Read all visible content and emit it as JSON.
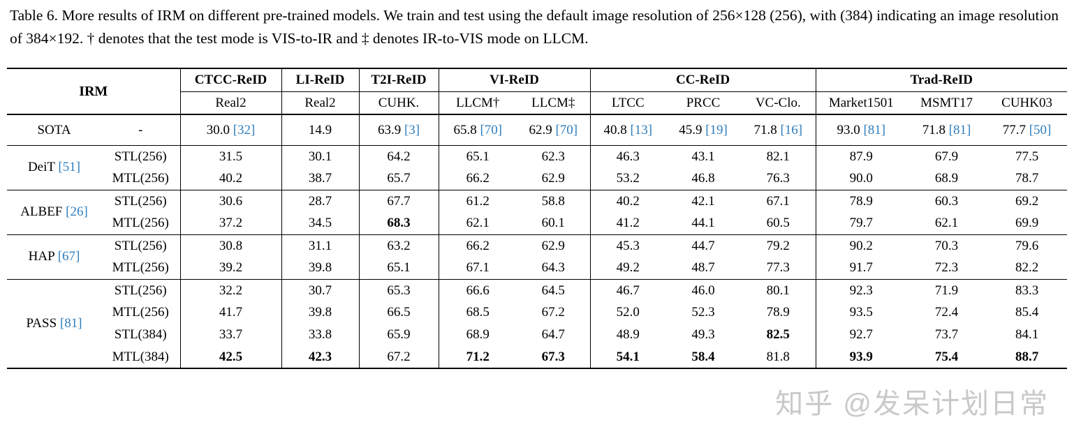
{
  "page": {
    "caption": "Table 6. More results of IRM on different pre-trained models. We train and test using the default image resolution of 256×128 (256), with (384) indicating an image resolution of 384×192. † denotes that the test mode is VIS-to-IR and ‡ denotes IR-to-VIS mode on LLCM.",
    "watermark": "知乎 @发呆计划日常"
  },
  "colors": {
    "citation": "#2e7dbd",
    "watermark": "#c9c9c9",
    "rule": "#000000"
  },
  "chart_data": {
    "type": "table",
    "title": "Table 6. More results of IRM on different pre-trained models.",
    "corner_label": "IRM",
    "column_groups": [
      {
        "label": "CTCC-ReID",
        "columns": [
          "Real2"
        ]
      },
      {
        "label": "LI-ReID",
        "columns": [
          "Real2"
        ]
      },
      {
        "label": "T2I-ReID",
        "columns": [
          "CUHK."
        ]
      },
      {
        "label": "VI-ReID",
        "columns": [
          "LLCM†",
          "LLCM‡"
        ]
      },
      {
        "label": "CC-ReID",
        "columns": [
          "LTCC",
          "PRCC",
          "VC-Clo."
        ]
      },
      {
        "label": "Trad-ReID",
        "columns": [
          "Market1501",
          "MSMT17",
          "CUHK03"
        ]
      }
    ],
    "sota_row": {
      "label": "SOTA",
      "setting": "-",
      "values": [
        {
          "v": "30.0",
          "cite": "[32]"
        },
        {
          "v": "14.9"
        },
        {
          "v": "63.9",
          "cite": "[3]"
        },
        {
          "v": "65.8",
          "cite": "[70]"
        },
        {
          "v": "62.9",
          "cite": "[70]"
        },
        {
          "v": "40.8",
          "cite": "[13]"
        },
        {
          "v": "45.9",
          "cite": "[19]"
        },
        {
          "v": "71.8",
          "cite": "[16]"
        },
        {
          "v": "93.0",
          "cite": "[81]"
        },
        {
          "v": "71.8",
          "cite": "[81]"
        },
        {
          "v": "77.7",
          "cite": "[50]"
        }
      ]
    },
    "model_groups": [
      {
        "name": "DeiT",
        "cite": "[51]",
        "rows": [
          {
            "setting": "STL(256)",
            "values": [
              "31.5",
              "30.1",
              "64.2",
              "65.1",
              "62.3",
              "46.3",
              "43.1",
              "82.1",
              "87.9",
              "67.9",
              "77.5"
            ]
          },
          {
            "setting": "MTL(256)",
            "values": [
              "40.2",
              "38.7",
              "65.7",
              "66.2",
              "62.9",
              "53.2",
              "46.8",
              "76.3",
              "90.0",
              "68.9",
              "78.7"
            ]
          }
        ]
      },
      {
        "name": "ALBEF",
        "cite": "[26]",
        "rows": [
          {
            "setting": "STL(256)",
            "values": [
              "30.6",
              "28.7",
              "67.7",
              "61.2",
              "58.8",
              "40.2",
              "42.1",
              "67.1",
              "78.9",
              "60.3",
              "69.2"
            ]
          },
          {
            "setting": "MTL(256)",
            "values": [
              "37.2",
              "34.5",
              {
                "v": "68.3",
                "b": true
              },
              "62.1",
              "60.1",
              "41.2",
              "44.1",
              "60.5",
              "79.7",
              "62.1",
              "69.9"
            ]
          }
        ]
      },
      {
        "name": "HAP",
        "cite": "[67]",
        "rows": [
          {
            "setting": "STL(256)",
            "values": [
              "30.8",
              "31.1",
              "63.2",
              "66.2",
              "62.9",
              "45.3",
              "44.7",
              "79.2",
              "90.2",
              "70.3",
              "79.6"
            ]
          },
          {
            "setting": "MTL(256)",
            "values": [
              "39.2",
              "39.8",
              "65.1",
              "67.1",
              "64.3",
              "49.2",
              "48.7",
              "77.3",
              "91.7",
              "72.3",
              "82.2"
            ]
          }
        ]
      },
      {
        "name": "PASS",
        "cite": "[81]",
        "rows": [
          {
            "setting": "STL(256)",
            "values": [
              "32.2",
              "30.7",
              "65.3",
              "66.6",
              "64.5",
              "46.7",
              "46.0",
              "80.1",
              "92.3",
              "71.9",
              "83.3"
            ]
          },
          {
            "setting": "MTL(256)",
            "values": [
              "41.7",
              "39.8",
              "66.5",
              "68.5",
              "67.2",
              "52.0",
              "52.3",
              "78.9",
              "93.5",
              "72.4",
              "85.4"
            ]
          },
          {
            "setting": "STL(384)",
            "values": [
              "33.7",
              "33.8",
              "65.9",
              "68.9",
              "64.7",
              "48.9",
              "49.3",
              {
                "v": "82.5",
                "b": true
              },
              "92.7",
              "73.7",
              "84.1"
            ]
          },
          {
            "setting": "MTL(384)",
            "values": [
              {
                "v": "42.5",
                "b": true
              },
              {
                "v": "42.3",
                "b": true
              },
              "67.2",
              {
                "v": "71.2",
                "b": true
              },
              {
                "v": "67.3",
                "b": true
              },
              {
                "v": "54.1",
                "b": true
              },
              {
                "v": "58.4",
                "b": true
              },
              "81.8",
              {
                "v": "93.9",
                "b": true
              },
              {
                "v": "75.4",
                "b": true
              },
              {
                "v": "88.7",
                "b": true
              }
            ]
          }
        ]
      }
    ]
  }
}
